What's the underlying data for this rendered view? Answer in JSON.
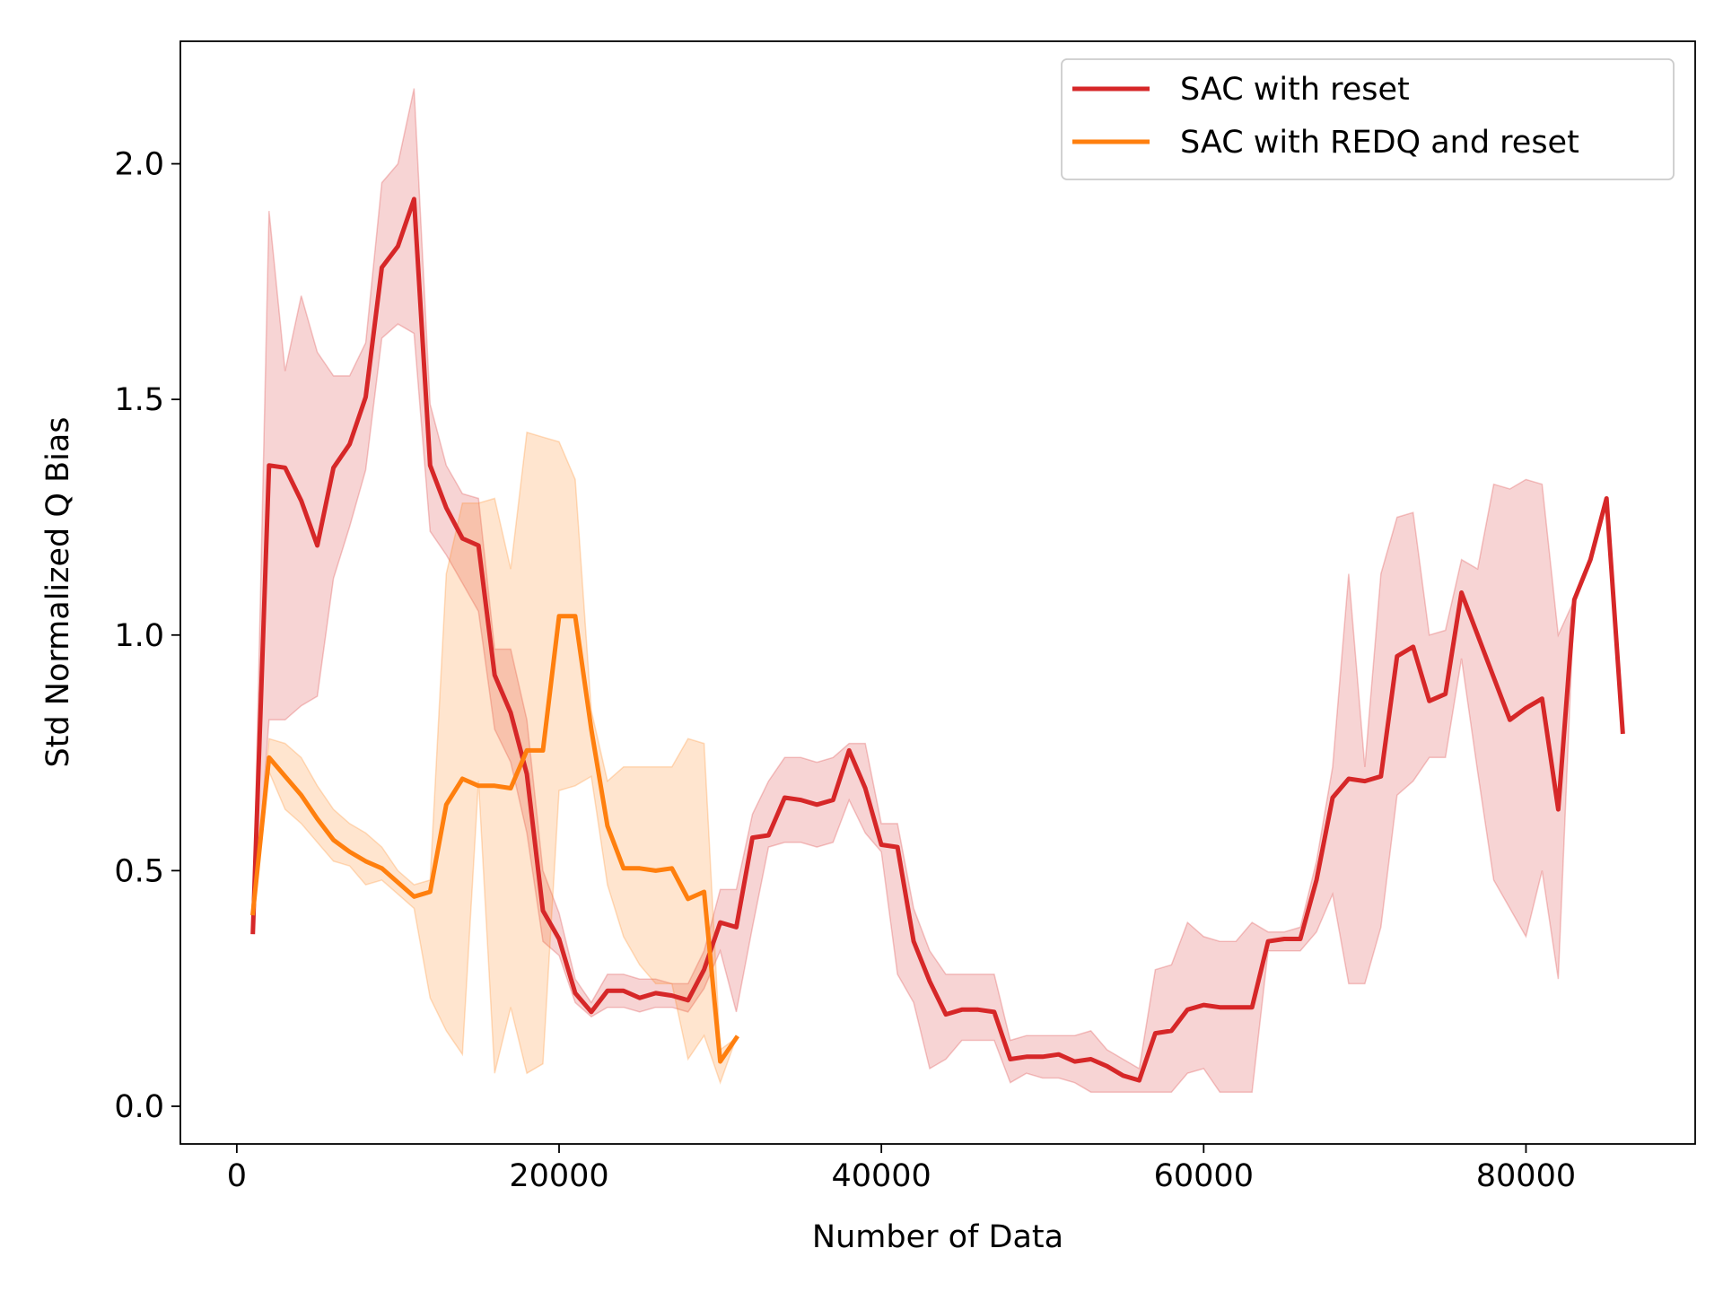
{
  "chart_data": {
    "type": "line",
    "title": "",
    "xlabel": "Number of Data",
    "ylabel": "Std Normalized Q Bias",
    "xlim": [
      -3500,
      90500
    ],
    "ylim": [
      -0.08,
      2.26
    ],
    "xticks": [
      0,
      20000,
      40000,
      60000,
      80000
    ],
    "yticks": [
      0.0,
      0.5,
      1.0,
      1.5,
      2.0
    ],
    "xtick_labels": [
      "0",
      "20000",
      "40000",
      "60000",
      "80000"
    ],
    "ytick_labels": [
      "0.0",
      "0.5",
      "1.0",
      "1.5",
      "2.0"
    ],
    "grid": false,
    "legend_position": "top-right",
    "series": [
      {
        "name": "SAC with reset",
        "color": "#d62728",
        "fill_opacity": 0.2,
        "x": [
          1000,
          2000,
          3000,
          4000,
          5000,
          6000,
          7000,
          8000,
          9000,
          10000,
          11000,
          12000,
          13000,
          14000,
          15000,
          16000,
          17000,
          18000,
          19000,
          20000,
          21000,
          22000,
          23000,
          24000,
          25000,
          26000,
          27000,
          28000,
          29000,
          30000,
          31000,
          32000,
          33000,
          34000,
          35000,
          36000,
          37000,
          38000,
          39000,
          40000,
          41000,
          42000,
          43000,
          44000,
          45000,
          46000,
          47000,
          48000,
          49000,
          50000,
          51000,
          52000,
          53000,
          54000,
          55000,
          56000,
          57000,
          58000,
          59000,
          60000,
          61000,
          62000,
          63000,
          64000,
          65000,
          66000,
          67000,
          68000,
          69000,
          70000,
          71000,
          72000,
          73000,
          74000,
          75000,
          76000,
          77000,
          78000,
          79000,
          80000,
          81000,
          82000,
          83000,
          84000,
          85000,
          86000
        ],
        "values": [
          0.37,
          1.36,
          1.355,
          1.285,
          1.19,
          1.355,
          1.405,
          1.505,
          1.78,
          1.825,
          1.925,
          1.36,
          1.27,
          1.205,
          1.19,
          0.915,
          0.835,
          0.705,
          0.415,
          0.355,
          0.24,
          0.2,
          0.245,
          0.245,
          0.23,
          0.24,
          0.235,
          0.225,
          0.29,
          0.39,
          0.38,
          0.57,
          0.575,
          0.655,
          0.65,
          0.64,
          0.65,
          0.755,
          0.675,
          0.555,
          0.55,
          0.35,
          0.265,
          0.195,
          0.205,
          0.205,
          0.2,
          0.1,
          0.105,
          0.105,
          0.11,
          0.095,
          0.1,
          0.085,
          0.065,
          0.055,
          0.155,
          0.16,
          0.205,
          0.215,
          0.21,
          0.21,
          0.21,
          0.35,
          0.355,
          0.355,
          0.48,
          0.655,
          0.695,
          0.69,
          0.7,
          0.955,
          0.975,
          0.86,
          0.875,
          1.09,
          1.0,
          0.91,
          0.82,
          0.845,
          0.865,
          0.63,
          1.075,
          1.16,
          1.29,
          0.795
        ],
        "lower": [
          0.37,
          0.82,
          0.82,
          0.85,
          0.87,
          1.12,
          1.23,
          1.35,
          1.63,
          1.66,
          1.64,
          1.22,
          1.17,
          1.11,
          1.05,
          0.8,
          0.73,
          0.58,
          0.35,
          0.32,
          0.22,
          0.19,
          0.21,
          0.21,
          0.2,
          0.21,
          0.21,
          0.2,
          0.25,
          0.33,
          0.2,
          0.38,
          0.55,
          0.56,
          0.56,
          0.55,
          0.56,
          0.65,
          0.58,
          0.54,
          0.28,
          0.22,
          0.08,
          0.1,
          0.14,
          0.14,
          0.14,
          0.05,
          0.07,
          0.06,
          0.06,
          0.05,
          0.03,
          0.03,
          0.03,
          0.03,
          0.03,
          0.03,
          0.07,
          0.08,
          0.03,
          0.03,
          0.03,
          0.33,
          0.33,
          0.33,
          0.37,
          0.45,
          0.26,
          0.26,
          0.38,
          0.66,
          0.69,
          0.74,
          0.74,
          0.95,
          0.71,
          0.48,
          0.42,
          0.36,
          0.5,
          0.27,
          1.075,
          1.16,
          1.29,
          0.795
        ],
        "upper": [
          0.37,
          1.9,
          1.56,
          1.72,
          1.6,
          1.55,
          1.55,
          1.62,
          1.96,
          2.0,
          2.16,
          1.49,
          1.36,
          1.3,
          1.29,
          0.97,
          0.97,
          0.82,
          0.5,
          0.41,
          0.27,
          0.22,
          0.28,
          0.28,
          0.27,
          0.27,
          0.26,
          0.26,
          0.33,
          0.46,
          0.46,
          0.62,
          0.69,
          0.74,
          0.74,
          0.73,
          0.74,
          0.77,
          0.77,
          0.6,
          0.6,
          0.42,
          0.33,
          0.28,
          0.28,
          0.28,
          0.28,
          0.14,
          0.15,
          0.15,
          0.15,
          0.15,
          0.16,
          0.12,
          0.1,
          0.08,
          0.29,
          0.3,
          0.39,
          0.36,
          0.35,
          0.35,
          0.39,
          0.37,
          0.37,
          0.38,
          0.52,
          0.72,
          1.13,
          0.72,
          1.13,
          1.25,
          1.26,
          1.0,
          1.01,
          1.16,
          1.14,
          1.32,
          1.31,
          1.33,
          1.32,
          1.0,
          1.075,
          1.16,
          1.29,
          0.795
        ]
      },
      {
        "name": "SAC with REDQ and reset",
        "color": "#ff7f0e",
        "fill_opacity": 0.2,
        "x": [
          1000,
          2000,
          3000,
          4000,
          5000,
          6000,
          7000,
          8000,
          9000,
          10000,
          11000,
          12000,
          13000,
          14000,
          15000,
          16000,
          17000,
          18000,
          19000,
          20000,
          21000,
          22000,
          23000,
          24000,
          25000,
          26000,
          27000,
          28000,
          29000,
          30000,
          31000
        ],
        "values": [
          0.41,
          0.74,
          0.7,
          0.66,
          0.61,
          0.565,
          0.54,
          0.52,
          0.505,
          0.475,
          0.445,
          0.455,
          0.64,
          0.695,
          0.68,
          0.68,
          0.675,
          0.755,
          0.755,
          1.04,
          1.04,
          0.8,
          0.595,
          0.505,
          0.505,
          0.5,
          0.505,
          0.44,
          0.455,
          0.095,
          0.145
        ],
        "lower": [
          0.41,
          0.71,
          0.63,
          0.6,
          0.56,
          0.52,
          0.51,
          0.47,
          0.48,
          0.45,
          0.42,
          0.23,
          0.16,
          0.11,
          0.69,
          0.07,
          0.21,
          0.07,
          0.09,
          0.67,
          0.68,
          0.7,
          0.47,
          0.36,
          0.3,
          0.26,
          0.26,
          0.1,
          0.15,
          0.05,
          0.145
        ],
        "upper": [
          0.41,
          0.78,
          0.77,
          0.74,
          0.68,
          0.63,
          0.6,
          0.58,
          0.55,
          0.5,
          0.47,
          0.48,
          1.13,
          1.28,
          1.28,
          1.29,
          1.14,
          1.43,
          1.42,
          1.41,
          1.33,
          0.84,
          0.69,
          0.72,
          0.72,
          0.72,
          0.72,
          0.78,
          0.77,
          0.12,
          0.145
        ]
      }
    ]
  }
}
